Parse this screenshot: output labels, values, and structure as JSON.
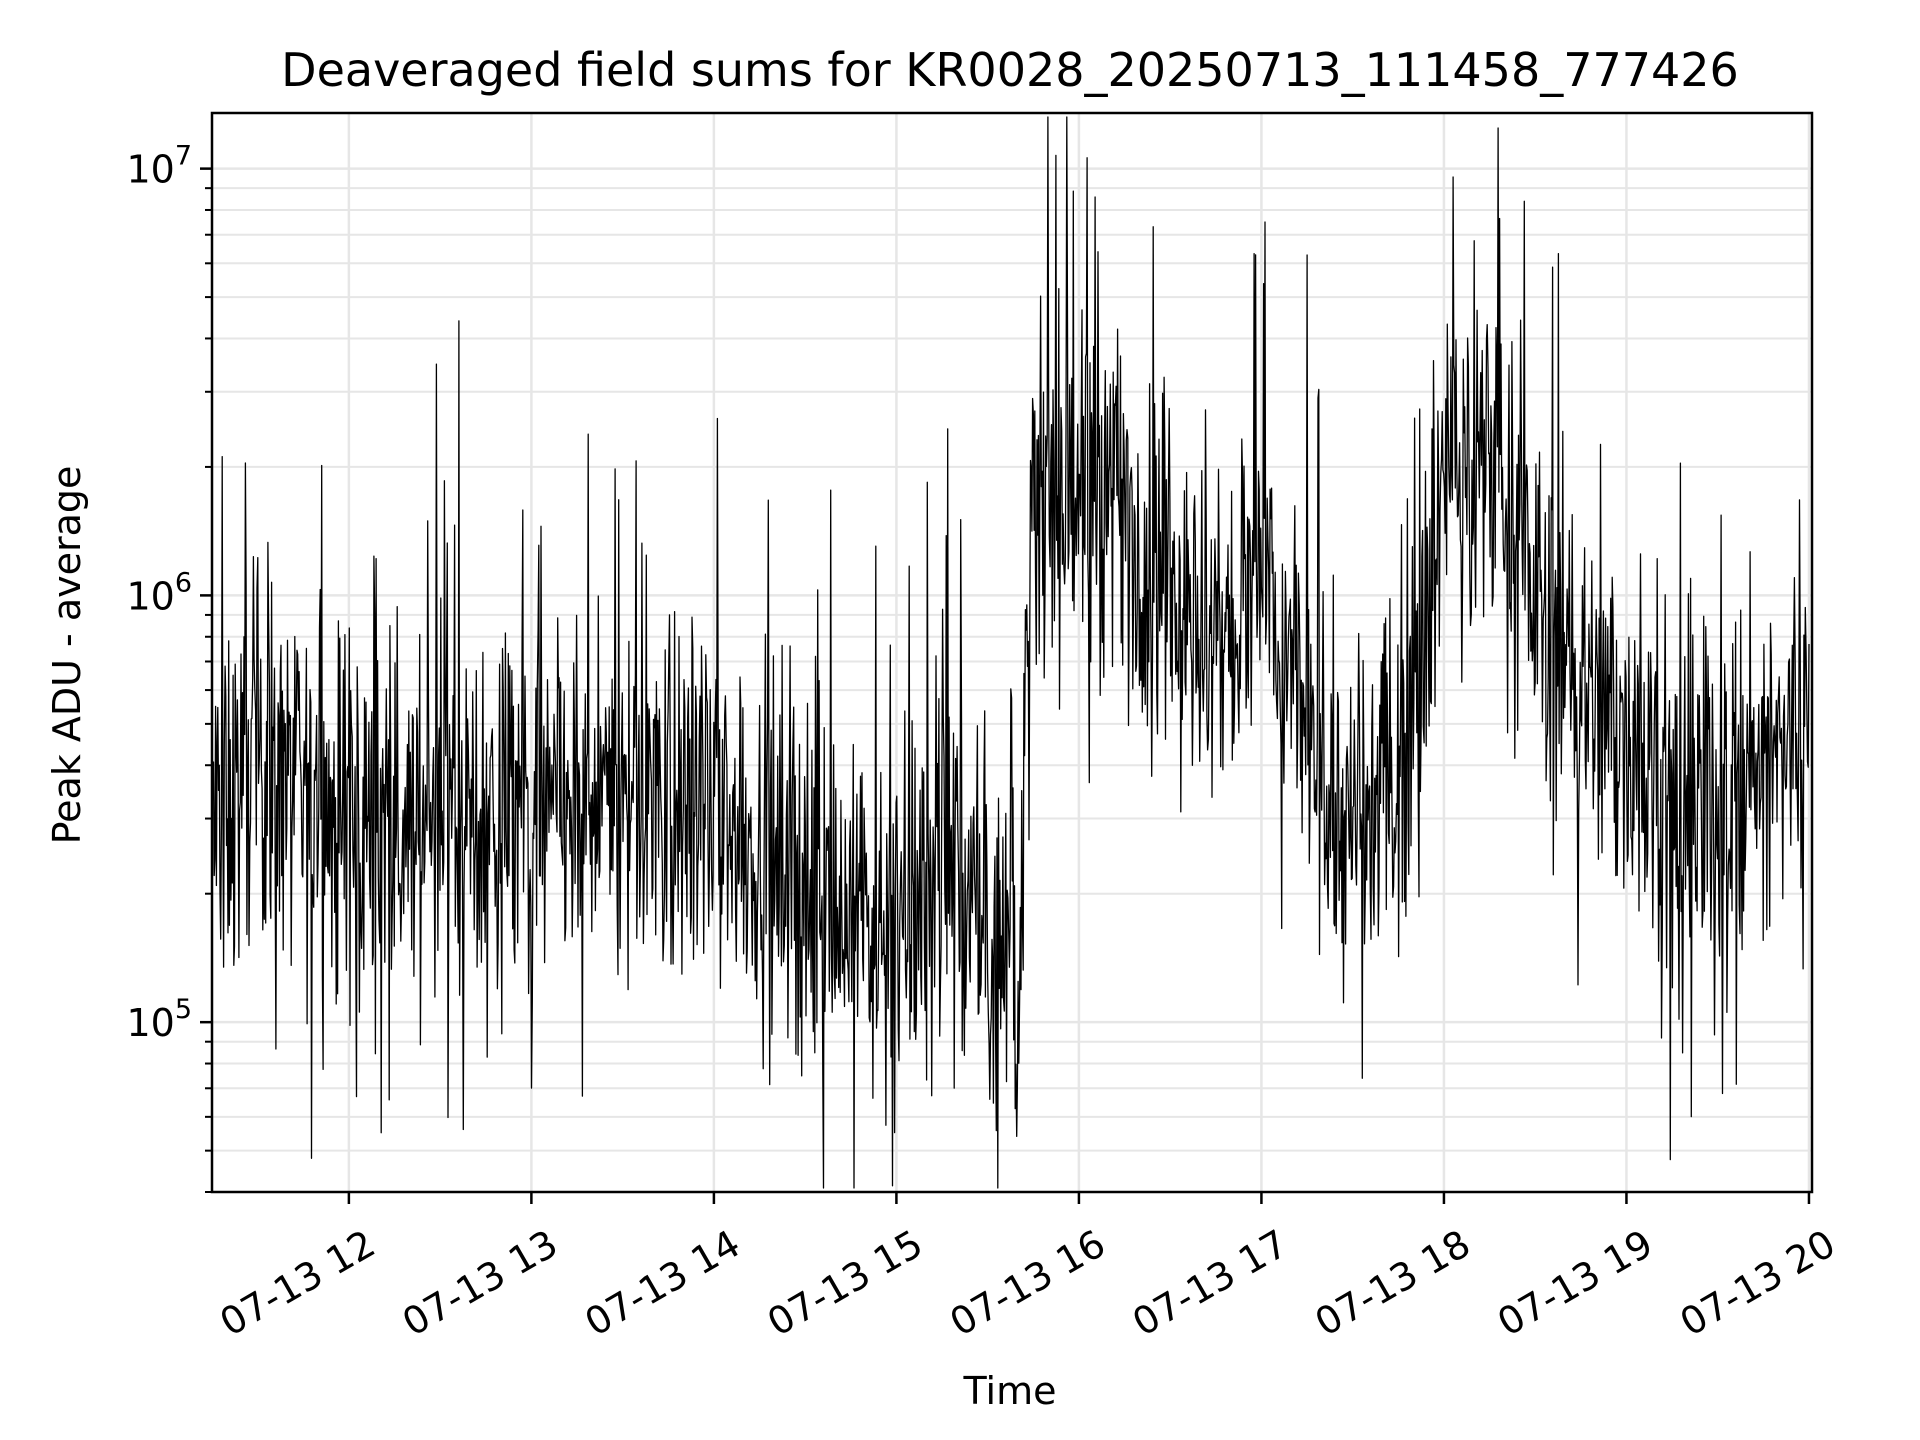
{
  "chart_data": {
    "type": "line",
    "title": "Deaveraged field sums for KR0028_20250713_111458_777426",
    "xlabel": "Time",
    "ylabel": "Peak ADU - average",
    "yscale": "log",
    "ylim": [
      40000,
      13500000
    ],
    "xlim": [
      "2025-07-13 11:15",
      "2025-07-13 20:01"
    ],
    "grid": true,
    "line_color": "#000000",
    "grid_color": "#e6e6e6",
    "x_ticks": [
      {
        "value": "2025-07-13 12:00",
        "label": "07-13 12"
      },
      {
        "value": "2025-07-13 13:00",
        "label": "07-13 13"
      },
      {
        "value": "2025-07-13 14:00",
        "label": "07-13 14"
      },
      {
        "value": "2025-07-13 15:00",
        "label": "07-13 15"
      },
      {
        "value": "2025-07-13 16:00",
        "label": "07-13 16"
      },
      {
        "value": "2025-07-13 17:00",
        "label": "07-13 17"
      },
      {
        "value": "2025-07-13 18:00",
        "label": "07-13 18"
      },
      {
        "value": "2025-07-13 19:00",
        "label": "07-13 19"
      },
      {
        "value": "2025-07-13 20:00",
        "label": "07-13 20"
      }
    ],
    "y_ticks": [
      {
        "value": 100000,
        "base": "10",
        "exp": "5"
      },
      {
        "value": 1000000,
        "base": "10",
        "exp": "6"
      },
      {
        "value": 10000000,
        "base": "10",
        "exp": "7"
      }
    ],
    "series": [
      {
        "x": [
          "2025-07-13 11:15",
          "2025-07-13 11:30",
          "2025-07-13 11:45",
          "2025-07-13 12:00",
          "2025-07-13 12:15",
          "2025-07-13 12:30",
          "2025-07-13 12:45",
          "2025-07-13 13:00",
          "2025-07-13 13:15",
          "2025-07-13 13:30",
          "2025-07-13 13:45",
          "2025-07-13 14:00",
          "2025-07-13 14:15",
          "2025-07-13 14:30",
          "2025-07-13 14:45",
          "2025-07-13 15:00",
          "2025-07-13 15:15",
          "2025-07-13 15:30",
          "2025-07-13 15:40",
          "2025-07-13 15:45",
          "2025-07-13 16:00",
          "2025-07-13 16:15",
          "2025-07-13 16:30",
          "2025-07-13 16:45",
          "2025-07-13 17:00",
          "2025-07-13 17:15",
          "2025-07-13 17:30",
          "2025-07-13 17:45",
          "2025-07-13 18:00",
          "2025-07-13 18:15",
          "2025-07-13 18:30",
          "2025-07-13 18:45",
          "2025-07-13 19:00",
          "2025-07-13 19:15",
          "2025-07-13 19:30",
          "2025-07-13 19:45",
          "2025-07-13 20:00"
        ],
        "values": [
          280000,
          450000,
          320000,
          290000,
          300000,
          320000,
          330000,
          300000,
          320000,
          340000,
          330000,
          300000,
          260000,
          200000,
          180000,
          170000,
          260000,
          150000,
          140000,
          1500000,
          1800000,
          1500000,
          1100000,
          700000,
          1100000,
          500000,
          250000,
          400000,
          1800000,
          2300000,
          1000000,
          600000,
          500000,
          320000,
          280000,
          380000,
          480000
        ]
      }
    ]
  }
}
